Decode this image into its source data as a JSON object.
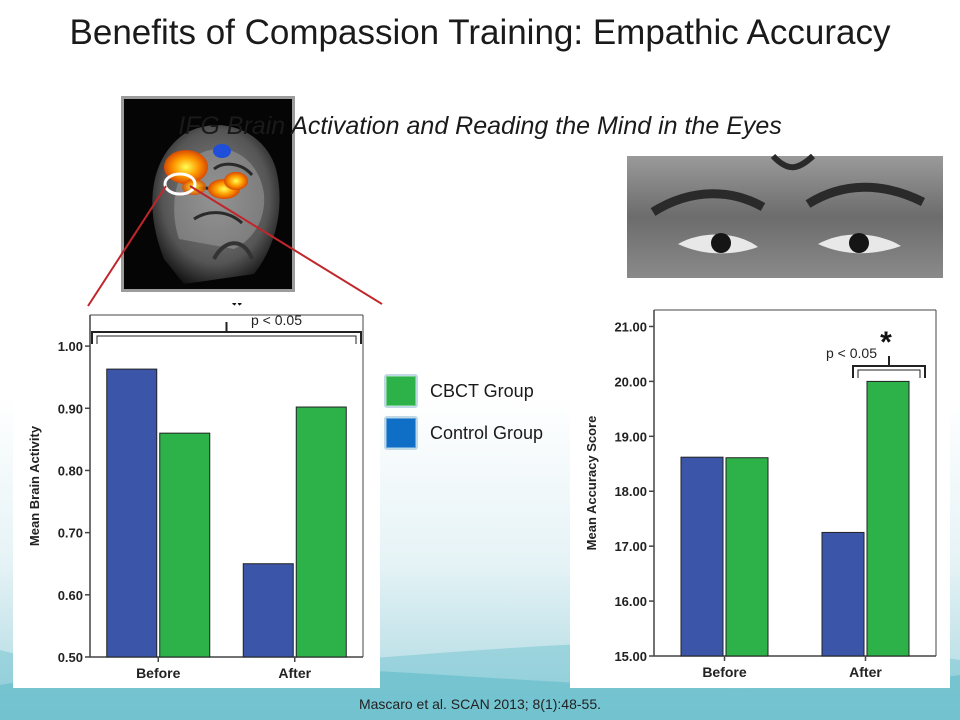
{
  "title": "Benefits of Compassion Training: Empathic Accuracy",
  "subtitle": "IFG Brain Activation and Reading the Mind in the Eyes",
  "citation": "Mascaro et al. SCAN 2013; 8(1):48-55.",
  "legend": [
    {
      "label": "CBCT Group",
      "color": "#2db24a"
    },
    {
      "label": "Control Group",
      "color": "#0f6fc6"
    }
  ],
  "chart_data": [
    {
      "type": "bar",
      "categories": [
        "Before",
        "After"
      ],
      "series": [
        {
          "name": "Control Group",
          "values": [
            0.963,
            0.65
          ],
          "color": "#3b55a9"
        },
        {
          "name": "CBCT Group",
          "values": [
            0.86,
            0.902
          ],
          "color": "#2db24a"
        }
      ],
      "ylabel": "Mean Brain Activity",
      "ylim": [
        0.5,
        1.05
      ],
      "yticks": [
        "0.50",
        "0.60",
        "0.70",
        "0.80",
        "0.90",
        "1.00"
      ],
      "ytick_values": [
        0.5,
        0.6,
        0.7,
        0.8,
        0.9,
        1.0
      ],
      "annotation": {
        "star": "*",
        "text": "p < 0.05"
      }
    },
    {
      "type": "bar",
      "categories": [
        "Before",
        "After"
      ],
      "series": [
        {
          "name": "Control Group",
          "values": [
            18.62,
            17.25
          ],
          "color": "#3b55a9"
        },
        {
          "name": "CBCT Group",
          "values": [
            18.61,
            20.0
          ],
          "color": "#2db24a"
        }
      ],
      "ylabel": "Mean Accuracy Score",
      "ylim": [
        15.0,
        21.3
      ],
      "yticks": [
        "15.00",
        "16.00",
        "17.00",
        "18.00",
        "19.00",
        "20.00",
        "21.00"
      ],
      "ytick_values": [
        15,
        16,
        17,
        18,
        19,
        20,
        21
      ],
      "annotation": {
        "star": "*",
        "text": "p < 0.05"
      }
    }
  ]
}
